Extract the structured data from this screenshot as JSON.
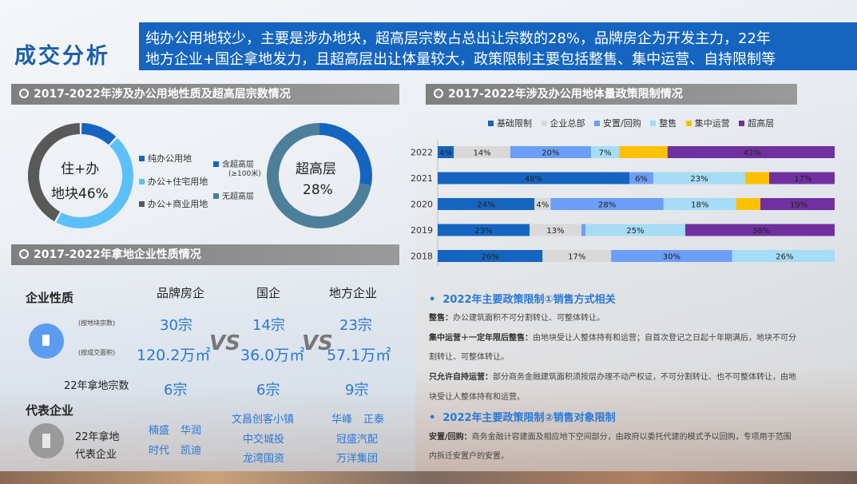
{
  "header": {
    "title": "成交分析",
    "summary_line1": "纯办公用地较少，主要是涉办地块，超高层宗数占总出让宗数的28%，品牌房企为开发主力，22年",
    "summary_line2": "地方企业+国企拿地发力，且超高层出让体量较大，政策限制主要包括整售、集中运营、自持限制等"
  },
  "sections": {
    "land_nature": "2017-2022年涉及办公用地性质及超高层宗数情况",
    "enterprise": "2017-2022年拿地企业性质情况",
    "policy": "2017-2022年涉及办公用地体量政策限制情况"
  },
  "colors": {
    "dark_blue": "#1565c0",
    "light_blue": "#5bc0f8",
    "gray": "#595959",
    "steel": "#4e7f9a",
    "basic": "#1565c0",
    "hq": "#d9d9d9",
    "resettle": "#6c9ef8",
    "whole": "#a6dcf5",
    "central": "#ffc000",
    "super": "#7030a0"
  },
  "chart_data": [
    {
      "type": "pie",
      "center_text": [
        "住+办",
        "地块46%"
      ],
      "categories": [
        "纯办公用地",
        "办公+住宅用地",
        "办公+商业用地"
      ],
      "values": [
        12,
        46,
        42
      ]
    },
    {
      "type": "pie",
      "center_text": [
        "超高层",
        "28%"
      ],
      "categories": [
        "含超高层",
        "无超高层"
      ],
      "category_note": "(≥100米)",
      "values": [
        28,
        72
      ]
    },
    {
      "type": "bar",
      "orientation": "horizontal",
      "stacked": true,
      "categories": [
        "2022",
        "2021",
        "2020",
        "2019",
        "2018"
      ],
      "series": [
        {
          "name": "基础限制",
          "values": [
            4,
            48,
            24,
            23,
            26
          ],
          "labels": [
            "4%",
            "48%",
            "24%",
            "23%",
            "26%"
          ]
        },
        {
          "name": "企业总部",
          "values": [
            14,
            0,
            4,
            13,
            17
          ],
          "labels": [
            "14%",
            "",
            "4%",
            "13%",
            "17%"
          ]
        },
        {
          "name": "安置/回购",
          "values": [
            20,
            6,
            28,
            1,
            30
          ],
          "labels": [
            "20%",
            "6%",
            "28%",
            "",
            "30%"
          ]
        },
        {
          "name": "整售",
          "values": [
            7,
            23,
            18,
            25,
            26
          ],
          "labels": [
            "7%",
            "23%",
            "18%",
            "25%",
            "26%"
          ]
        },
        {
          "name": "集中运营",
          "values": [
            12,
            6,
            6,
            0,
            0
          ],
          "labels": [
            "",
            "",
            "",
            "",
            ""
          ]
        },
        {
          "name": "超高层",
          "values": [
            42,
            17,
            19,
            38,
            0
          ],
          "labels": [
            "42%",
            "17%",
            "19%",
            "38%",
            ""
          ]
        }
      ],
      "legend": "top"
    }
  ],
  "enterprise": {
    "col_header": "企业性质",
    "types": [
      "品牌房企",
      "国企",
      "地方企业"
    ],
    "by_count_label": "(按地块宗数)",
    "by_area_label": "(按成交面积)",
    "counts": [
      "30宗",
      "14宗",
      "23宗"
    ],
    "areas": [
      "120.2万㎡",
      "36.0万㎡",
      "57.1万㎡"
    ],
    "vs": "VS",
    "row22_label": "22年拿地宗数",
    "row22": [
      "6宗",
      "6宗",
      "9宗"
    ],
    "rep_header": "代表企业",
    "rep_label1": "22年拿地",
    "rep_label2": "代表企业",
    "rep_brand": [
      [
        "楠盛",
        "华润"
      ],
      [
        "时代",
        "凯迪"
      ]
    ],
    "rep_state": [
      "文昌创客小镇",
      "中交城投",
      "龙湾国资"
    ],
    "rep_local": [
      [
        "华峰",
        "正泰"
      ],
      [
        "冠盛汽配"
      ],
      [
        "万洋集团"
      ]
    ]
  },
  "policy_text": {
    "h1": "2022年主要政策限制①销售方式相关",
    "p1_t": "整售：",
    "p1": "办公建筑面积不可分割转让、可整体转让。",
    "p2_t": "集中运营＋一定年限后整售：",
    "p2": "由地块受让人整体持有和运营；自首次登记之日起十年期满后，地块不可分",
    "p2b": "割转让、可整体转让。",
    "p3_t": "只允许自持运营：",
    "p3": "部分商务金融建筑面积须按层办理不动产权证，不可分割转让、也不可整体转让，由地",
    "p3b": "块受让人整体持有和运营。",
    "h2": "2022年主要政策限制②销售对象限制",
    "p4_t": "安置/回购：",
    "p4": "商务金融计容建面及相应地下空间部分，由政府以委托代建的模式予以回购，专项用于范围",
    "p4b": "内拆迁安置户的安置。"
  }
}
